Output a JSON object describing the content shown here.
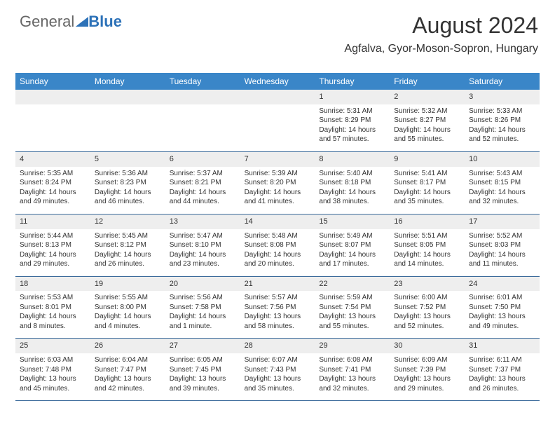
{
  "logo": {
    "part1": "General",
    "part2": "Blue"
  },
  "header": {
    "title": "August 2024",
    "subtitle": "Agfalva, Gyor-Moson-Sopron, Hungary"
  },
  "colors": {
    "header_bg": "#3a86c8",
    "header_text": "#ffffff",
    "daynum_bg": "#eeeeee",
    "row_border": "#3a6a9a",
    "text": "#333333",
    "logo_gray": "#666666",
    "logo_blue": "#2d72b8"
  },
  "typography": {
    "title_fontsize": 32,
    "subtitle_fontsize": 16,
    "dayhead_fontsize": 12,
    "daynum_fontsize": 11,
    "cell_fontsize": 10
  },
  "weekdays": [
    "Sunday",
    "Monday",
    "Tuesday",
    "Wednesday",
    "Thursday",
    "Friday",
    "Saturday"
  ],
  "weeks": [
    [
      null,
      null,
      null,
      null,
      {
        "day": "1",
        "sunrise": "Sunrise: 5:31 AM",
        "sunset": "Sunset: 8:29 PM",
        "daylight": "Daylight: 14 hours and 57 minutes."
      },
      {
        "day": "2",
        "sunrise": "Sunrise: 5:32 AM",
        "sunset": "Sunset: 8:27 PM",
        "daylight": "Daylight: 14 hours and 55 minutes."
      },
      {
        "day": "3",
        "sunrise": "Sunrise: 5:33 AM",
        "sunset": "Sunset: 8:26 PM",
        "daylight": "Daylight: 14 hours and 52 minutes."
      }
    ],
    [
      {
        "day": "4",
        "sunrise": "Sunrise: 5:35 AM",
        "sunset": "Sunset: 8:24 PM",
        "daylight": "Daylight: 14 hours and 49 minutes."
      },
      {
        "day": "5",
        "sunrise": "Sunrise: 5:36 AM",
        "sunset": "Sunset: 8:23 PM",
        "daylight": "Daylight: 14 hours and 46 minutes."
      },
      {
        "day": "6",
        "sunrise": "Sunrise: 5:37 AM",
        "sunset": "Sunset: 8:21 PM",
        "daylight": "Daylight: 14 hours and 44 minutes."
      },
      {
        "day": "7",
        "sunrise": "Sunrise: 5:39 AM",
        "sunset": "Sunset: 8:20 PM",
        "daylight": "Daylight: 14 hours and 41 minutes."
      },
      {
        "day": "8",
        "sunrise": "Sunrise: 5:40 AM",
        "sunset": "Sunset: 8:18 PM",
        "daylight": "Daylight: 14 hours and 38 minutes."
      },
      {
        "day": "9",
        "sunrise": "Sunrise: 5:41 AM",
        "sunset": "Sunset: 8:17 PM",
        "daylight": "Daylight: 14 hours and 35 minutes."
      },
      {
        "day": "10",
        "sunrise": "Sunrise: 5:43 AM",
        "sunset": "Sunset: 8:15 PM",
        "daylight": "Daylight: 14 hours and 32 minutes."
      }
    ],
    [
      {
        "day": "11",
        "sunrise": "Sunrise: 5:44 AM",
        "sunset": "Sunset: 8:13 PM",
        "daylight": "Daylight: 14 hours and 29 minutes."
      },
      {
        "day": "12",
        "sunrise": "Sunrise: 5:45 AM",
        "sunset": "Sunset: 8:12 PM",
        "daylight": "Daylight: 14 hours and 26 minutes."
      },
      {
        "day": "13",
        "sunrise": "Sunrise: 5:47 AM",
        "sunset": "Sunset: 8:10 PM",
        "daylight": "Daylight: 14 hours and 23 minutes."
      },
      {
        "day": "14",
        "sunrise": "Sunrise: 5:48 AM",
        "sunset": "Sunset: 8:08 PM",
        "daylight": "Daylight: 14 hours and 20 minutes."
      },
      {
        "day": "15",
        "sunrise": "Sunrise: 5:49 AM",
        "sunset": "Sunset: 8:07 PM",
        "daylight": "Daylight: 14 hours and 17 minutes."
      },
      {
        "day": "16",
        "sunrise": "Sunrise: 5:51 AM",
        "sunset": "Sunset: 8:05 PM",
        "daylight": "Daylight: 14 hours and 14 minutes."
      },
      {
        "day": "17",
        "sunrise": "Sunrise: 5:52 AM",
        "sunset": "Sunset: 8:03 PM",
        "daylight": "Daylight: 14 hours and 11 minutes."
      }
    ],
    [
      {
        "day": "18",
        "sunrise": "Sunrise: 5:53 AM",
        "sunset": "Sunset: 8:01 PM",
        "daylight": "Daylight: 14 hours and 8 minutes."
      },
      {
        "day": "19",
        "sunrise": "Sunrise: 5:55 AM",
        "sunset": "Sunset: 8:00 PM",
        "daylight": "Daylight: 14 hours and 4 minutes."
      },
      {
        "day": "20",
        "sunrise": "Sunrise: 5:56 AM",
        "sunset": "Sunset: 7:58 PM",
        "daylight": "Daylight: 14 hours and 1 minute."
      },
      {
        "day": "21",
        "sunrise": "Sunrise: 5:57 AM",
        "sunset": "Sunset: 7:56 PM",
        "daylight": "Daylight: 13 hours and 58 minutes."
      },
      {
        "day": "22",
        "sunrise": "Sunrise: 5:59 AM",
        "sunset": "Sunset: 7:54 PM",
        "daylight": "Daylight: 13 hours and 55 minutes."
      },
      {
        "day": "23",
        "sunrise": "Sunrise: 6:00 AM",
        "sunset": "Sunset: 7:52 PM",
        "daylight": "Daylight: 13 hours and 52 minutes."
      },
      {
        "day": "24",
        "sunrise": "Sunrise: 6:01 AM",
        "sunset": "Sunset: 7:50 PM",
        "daylight": "Daylight: 13 hours and 49 minutes."
      }
    ],
    [
      {
        "day": "25",
        "sunrise": "Sunrise: 6:03 AM",
        "sunset": "Sunset: 7:48 PM",
        "daylight": "Daylight: 13 hours and 45 minutes."
      },
      {
        "day": "26",
        "sunrise": "Sunrise: 6:04 AM",
        "sunset": "Sunset: 7:47 PM",
        "daylight": "Daylight: 13 hours and 42 minutes."
      },
      {
        "day": "27",
        "sunrise": "Sunrise: 6:05 AM",
        "sunset": "Sunset: 7:45 PM",
        "daylight": "Daylight: 13 hours and 39 minutes."
      },
      {
        "day": "28",
        "sunrise": "Sunrise: 6:07 AM",
        "sunset": "Sunset: 7:43 PM",
        "daylight": "Daylight: 13 hours and 35 minutes."
      },
      {
        "day": "29",
        "sunrise": "Sunrise: 6:08 AM",
        "sunset": "Sunset: 7:41 PM",
        "daylight": "Daylight: 13 hours and 32 minutes."
      },
      {
        "day": "30",
        "sunrise": "Sunrise: 6:09 AM",
        "sunset": "Sunset: 7:39 PM",
        "daylight": "Daylight: 13 hours and 29 minutes."
      },
      {
        "day": "31",
        "sunrise": "Sunrise: 6:11 AM",
        "sunset": "Sunset: 7:37 PM",
        "daylight": "Daylight: 13 hours and 26 minutes."
      }
    ]
  ]
}
